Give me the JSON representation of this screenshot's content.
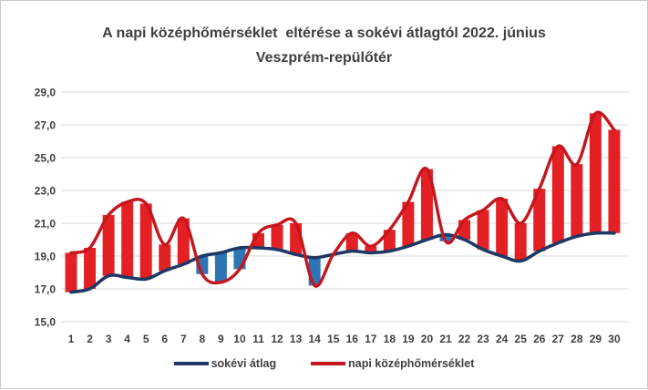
{
  "title": {
    "line1": "A napi középhőmérséklet  eltérése a sokévi átlagtól 2022. június",
    "line2": "Veszprém-repülőtér",
    "color": "#3f3f3f"
  },
  "chart_data": {
    "type": "line",
    "title": "A napi középhőmérséklet eltérése a sokévi átlagtól 2022. június Veszprém-repülőtér",
    "categories": [
      "1",
      "2",
      "3",
      "4",
      "5",
      "6",
      "7",
      "8",
      "9",
      "10",
      "11",
      "12",
      "13",
      "14",
      "15",
      "16",
      "17",
      "18",
      "19",
      "20",
      "21",
      "22",
      "23",
      "24",
      "25",
      "26",
      "27",
      "28",
      "29",
      "30"
    ],
    "series": [
      {
        "name": "sokévi átlag",
        "color": "#1f3864",
        "values": [
          16.8,
          17.0,
          17.8,
          17.7,
          17.6,
          18.1,
          18.5,
          19.0,
          19.2,
          19.5,
          19.5,
          19.4,
          19.1,
          18.9,
          19.1,
          19.3,
          19.2,
          19.3,
          19.6,
          20.0,
          20.3,
          20.0,
          19.4,
          19.0,
          18.7,
          19.3,
          19.8,
          20.2,
          20.4,
          20.4
        ]
      },
      {
        "name": "napi középhőmérséklet",
        "color": "#c5161d",
        "values": [
          19.2,
          19.5,
          21.5,
          22.3,
          22.2,
          19.7,
          21.3,
          17.9,
          17.4,
          18.2,
          20.4,
          20.9,
          21.0,
          17.2,
          19.1,
          20.4,
          19.6,
          20.6,
          22.3,
          24.3,
          19.9,
          21.2,
          21.8,
          22.5,
          21.0,
          23.1,
          25.7,
          24.6,
          27.7,
          26.7
        ]
      }
    ],
    "updown_bars": {
      "up_color": "#e32125",
      "down_color": "#2e75b6"
    },
    "smooth_lines": true,
    "ylim": [
      15,
      29
    ],
    "y_tick_values": [
      15,
      17,
      19,
      21,
      23,
      25,
      27,
      29
    ],
    "y_tick_labels": [
      "15,0",
      "17,0",
      "19,0",
      "21,0",
      "23,0",
      "25,0",
      "27,0",
      "29,0"
    ],
    "grid": true,
    "gridline_color": "#d8d8d8",
    "tick_label_color": "#3f3f3f",
    "legend_position": "bottom",
    "xlabel": "",
    "ylabel": ""
  },
  "legend": {
    "items": [
      {
        "label": "sokévi átlag"
      },
      {
        "label": "napi középhőmérséklet"
      }
    ]
  }
}
